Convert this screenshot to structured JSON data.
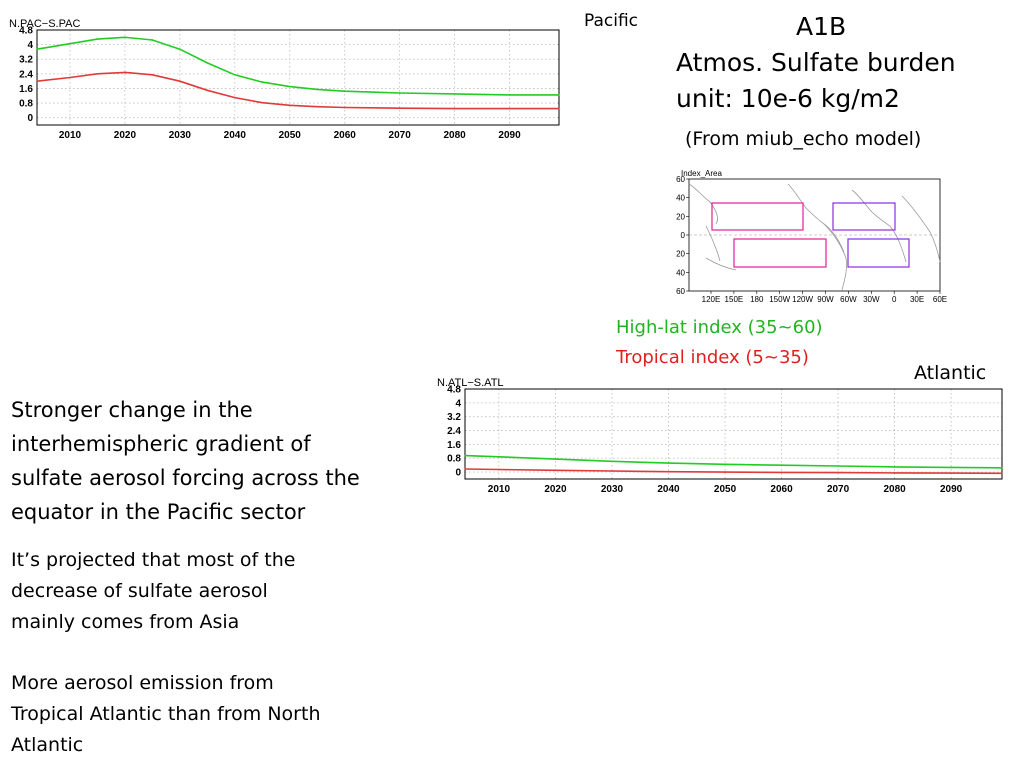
{
  "slide": {
    "title_lines": [
      "A1B",
      "Atmos. Sulfate burden",
      "unit: 10e-6  kg/m2"
    ],
    "source_note": "(From miub_echo model)",
    "region_pacific": "Pacific",
    "region_atlantic": "Atlantic",
    "legend_highlat": "High-lat index (35~60)",
    "legend_tropical": "Tropical index (5~35)",
    "main_text_lines": [
      "Stronger change in the",
      "interhemispheric gradient of",
      "sulfate aerosol forcing across the",
      "equator in the Pacific sector"
    ],
    "note1_lines": [
      "It’s projected that  most of the",
      "decrease of sulfate aerosol",
      "mainly comes from Asia"
    ],
    "note2_lines": [
      "More aerosol emission from",
      "Tropical Atlantic than  from North",
      "Atlantic"
    ]
  },
  "colors": {
    "highlat": "#22cc22",
    "tropical": "#e03a3a",
    "box_pink": "#e0209a",
    "box_purple": "#8a2be2",
    "text": "#000000"
  },
  "map": {
    "title": "Index_Area",
    "y_ticks": [
      "60",
      "40",
      "20",
      "0",
      "−20",
      "−40",
      "−60"
    ],
    "x_ticks": [
      "120E",
      "150E",
      "180",
      "150W",
      "120W",
      "90W",
      "60W",
      "30W",
      "0",
      "30E",
      "60E"
    ]
  },
  "chart_data": [
    {
      "type": "line",
      "title": "N.PAC−S.PAC",
      "x_tick_labels": [
        "2010",
        "2020",
        "2030",
        "2040",
        "2050",
        "2060",
        "2070",
        "2080",
        "2090"
      ],
      "y_tick_labels": [
        "0",
        "0.8",
        "1.6",
        "2.4",
        "3.2",
        "4",
        "4.8"
      ],
      "xlim": [
        2004,
        2099
      ],
      "ylim": [
        -0.4,
        4.8
      ],
      "grid": true,
      "series": [
        {
          "color": "#22cc22",
          "x": [
            2004,
            2010,
            2015,
            2020,
            2025,
            2030,
            2035,
            2040,
            2045,
            2050,
            2055,
            2060,
            2070,
            2080,
            2090,
            2099
          ],
          "values": [
            3.75,
            4.05,
            4.3,
            4.4,
            4.25,
            3.75,
            3.0,
            2.35,
            1.95,
            1.7,
            1.55,
            1.45,
            1.35,
            1.3,
            1.25,
            1.25
          ]
        },
        {
          "color": "#e03a3a",
          "x": [
            2004,
            2010,
            2015,
            2020,
            2025,
            2030,
            2035,
            2040,
            2045,
            2050,
            2055,
            2060,
            2070,
            2080,
            2090,
            2099
          ],
          "values": [
            2.0,
            2.2,
            2.4,
            2.48,
            2.35,
            2.0,
            1.5,
            1.1,
            0.82,
            0.68,
            0.6,
            0.56,
            0.52,
            0.5,
            0.5,
            0.5
          ]
        }
      ]
    },
    {
      "type": "line",
      "title": "N.ATL−S.ATL",
      "x_tick_labels": [
        "2010",
        "2020",
        "2030",
        "2040",
        "2050",
        "2060",
        "2070",
        "2080",
        "2090"
      ],
      "y_tick_labels": [
        "0",
        "0.8",
        "1.6",
        "2.4",
        "3.2",
        "4",
        "4.8"
      ],
      "xlim": [
        2004,
        2099
      ],
      "ylim": [
        -0.4,
        4.8
      ],
      "grid": true,
      "series": [
        {
          "color": "#22cc22",
          "x": [
            2004,
            2010,
            2020,
            2030,
            2040,
            2050,
            2060,
            2070,
            2080,
            2090,
            2099
          ],
          "values": [
            0.95,
            0.88,
            0.75,
            0.62,
            0.52,
            0.45,
            0.4,
            0.35,
            0.3,
            0.27,
            0.25
          ]
        },
        {
          "color": "#e03a3a",
          "x": [
            2004,
            2010,
            2020,
            2030,
            2040,
            2050,
            2060,
            2070,
            2080,
            2090,
            2099
          ],
          "values": [
            0.18,
            0.15,
            0.1,
            0.06,
            0.02,
            0.0,
            -0.02,
            -0.03,
            -0.05,
            -0.06,
            -0.07
          ]
        }
      ]
    }
  ]
}
